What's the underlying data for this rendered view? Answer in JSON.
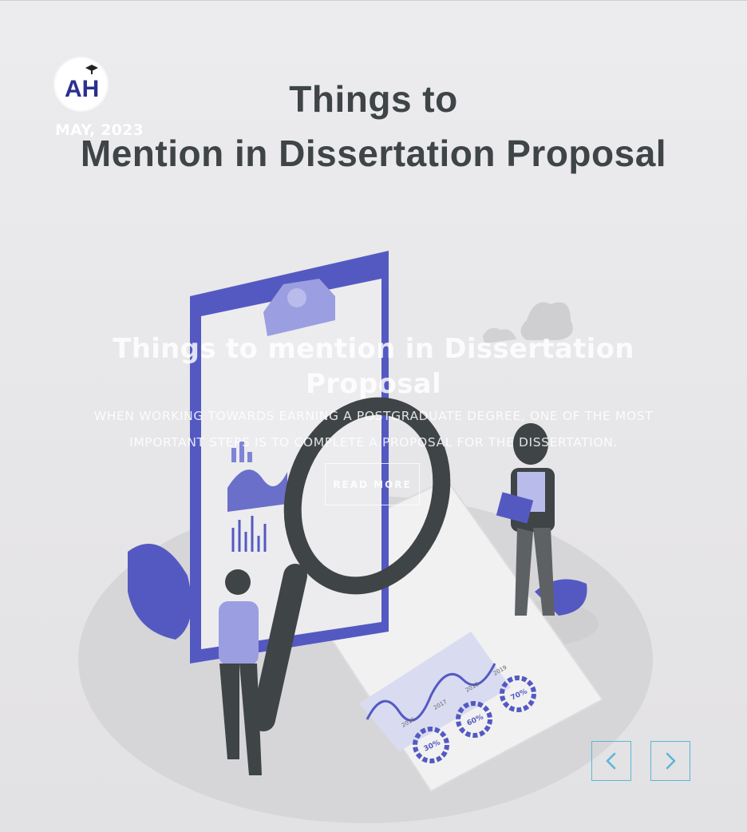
{
  "banner": {
    "title_line1": "Things to",
    "title_line2": "Mention in Dissertation Proposal"
  },
  "logo": {
    "text": "AH"
  },
  "post": {
    "date": "MAY, 2023",
    "title": "Things to mention in Dissertation Proposal",
    "description": "When working towards earning a postgraduate degree, one of the most important steps is to complete a proposal for the dissertation.",
    "read_more_label": "READ MORE"
  },
  "illustration": {
    "chart_labels": [
      "2016",
      "2017",
      "2018",
      "2019"
    ],
    "percent_labels": [
      "30%",
      "60%",
      "70%"
    ]
  },
  "slider": {
    "prev_icon": "chevron-left-icon",
    "next_icon": "chevron-right-icon"
  },
  "colors": {
    "accent_purple": "#5459c2",
    "nav_border": "#5bb5d8",
    "title_text": "#3f4446",
    "background": "#e6e5e7"
  }
}
